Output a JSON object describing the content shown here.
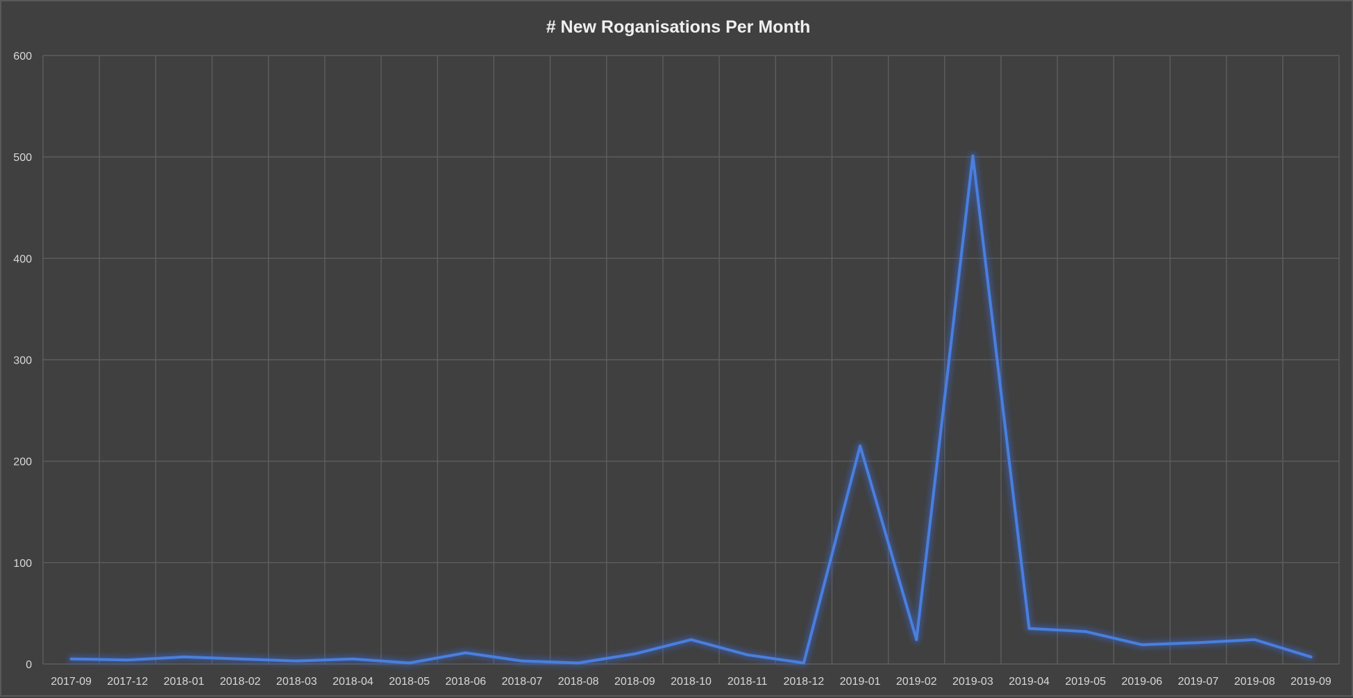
{
  "chart_data": {
    "type": "line",
    "title": "# New Roganisations Per Month",
    "xlabel": "",
    "ylabel": "",
    "categories": [
      "2017-09",
      "2017-12",
      "2018-01",
      "2018-02",
      "2018-03",
      "2018-04",
      "2018-05",
      "2018-06",
      "2018-07",
      "2018-08",
      "2018-09",
      "2018-10",
      "2018-11",
      "2018-12",
      "2019-01",
      "2019-02",
      "2019-03",
      "2019-04",
      "2019-05",
      "2019-06",
      "2019-07",
      "2019-08",
      "2019-09"
    ],
    "series": [
      {
        "values": [
          5,
          4,
          7,
          5,
          3,
          5,
          1,
          11,
          3,
          1,
          10,
          24,
          9,
          1,
          215,
          24,
          501,
          35,
          32,
          19,
          21,
          24,
          7
        ]
      }
    ],
    "ylim": [
      0,
      600
    ],
    "yticks": [
      0,
      100,
      200,
      300,
      400,
      500,
      600
    ],
    "grid": true,
    "legend": "none",
    "colors": {
      "background": "#404040",
      "line": "#4a7fdc",
      "glow": "#3a66c8",
      "grid": "#5e5e5e",
      "text": "#d9d9d9",
      "title": "#f0f0f0"
    }
  }
}
